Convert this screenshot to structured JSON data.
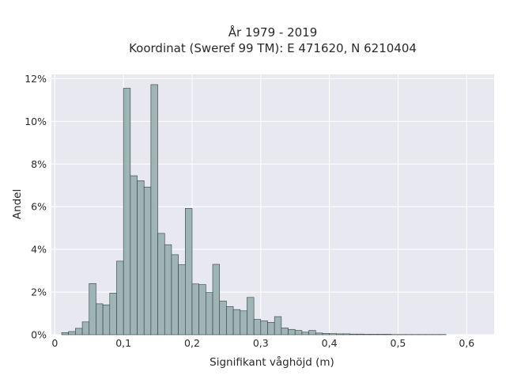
{
  "chart_data": {
    "type": "bar",
    "title": "År 1979 - 2019",
    "subtitle": "Koordinat (Sweref 99 TM): E 471620, N 6210404",
    "xlabel": "Signifikant våghöjd (m)",
    "ylabel": "Andel",
    "xlim": [
      -0.005,
      0.64
    ],
    "ylim": [
      0,
      0.122
    ],
    "xticks": [
      0,
      0.1,
      0.2,
      0.3,
      0.4,
      0.5,
      0.6
    ],
    "xtick_labels": [
      "0",
      "0,1",
      "0,2",
      "0,3",
      "0,4",
      "0,5",
      "0,6"
    ],
    "yticks": [
      0,
      0.02,
      0.04,
      0.06,
      0.08,
      0.1,
      0.12
    ],
    "ytick_labels": [
      "0%",
      "2%",
      "4%",
      "6%",
      "8%",
      "10%",
      "12%"
    ],
    "grid": true,
    "bin_width": 0.01,
    "bin_starts": [
      0.01,
      0.02,
      0.03,
      0.04,
      0.05,
      0.06,
      0.07,
      0.08,
      0.09,
      0.1,
      0.11,
      0.12,
      0.13,
      0.14,
      0.15,
      0.16,
      0.17,
      0.18,
      0.19,
      0.2,
      0.21,
      0.22,
      0.23,
      0.24,
      0.25,
      0.26,
      0.27,
      0.28,
      0.29,
      0.3,
      0.31,
      0.32,
      0.33,
      0.34,
      0.35,
      0.36,
      0.37,
      0.38,
      0.39,
      0.4,
      0.41,
      0.42,
      0.43,
      0.44,
      0.45,
      0.46,
      0.47,
      0.48,
      0.49,
      0.5,
      0.51,
      0.52,
      0.53,
      0.54,
      0.55,
      0.56,
      0.57,
      0.58
    ],
    "values": [
      0.001,
      0.0015,
      0.003,
      0.006,
      0.024,
      0.0145,
      0.014,
      0.0195,
      0.0345,
      0.1155,
      0.0745,
      0.0722,
      0.0692,
      0.1172,
      0.0475,
      0.0422,
      0.0375,
      0.0328,
      0.0592,
      0.0238,
      0.0235,
      0.0198,
      0.033,
      0.0158,
      0.0132,
      0.0118,
      0.0112,
      0.0175,
      0.0072,
      0.0065,
      0.0058,
      0.0085,
      0.0032,
      0.0025,
      0.002,
      0.0012,
      0.002,
      0.0008,
      0.0006,
      0.0005,
      0.0004,
      0.0004,
      0.0003,
      0.0003,
      0.0002,
      0.0002,
      0.0002,
      0.0002,
      0.0001,
      0.0001,
      0.0001,
      0.0001,
      0.0001,
      0.0001,
      0.0001,
      0.0001,
      0.0,
      0.0
    ],
    "colors": {
      "plot_background": "#e8e9f0",
      "grid": "#ffffff",
      "bar_fill": "#9fb5b5",
      "bar_edge": "#2f3f3f"
    }
  }
}
